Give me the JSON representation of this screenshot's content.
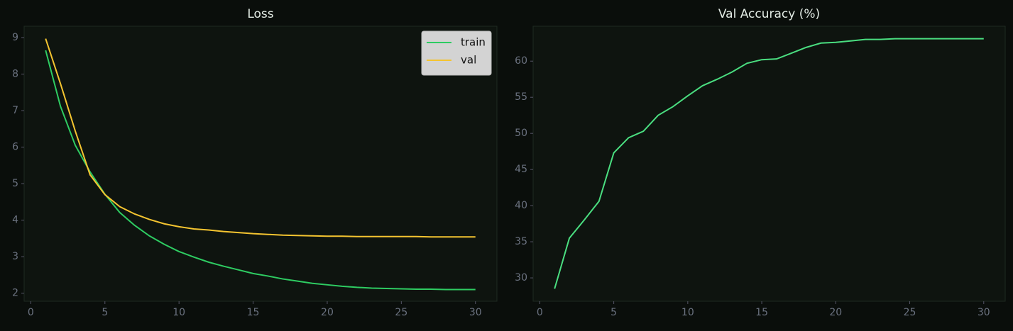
{
  "chart_data": [
    {
      "type": "line",
      "title": "Loss",
      "x": [
        1,
        2,
        3,
        4,
        5,
        6,
        7,
        8,
        9,
        10,
        11,
        12,
        13,
        14,
        15,
        16,
        17,
        18,
        19,
        20,
        21,
        22,
        23,
        24,
        25,
        26,
        27,
        28,
        29,
        30
      ],
      "series": [
        {
          "name": "train",
          "color": "#2ecc62",
          "values": [
            8.65,
            7.12,
            6.05,
            5.32,
            4.71,
            4.21,
            3.86,
            3.57,
            3.34,
            3.14,
            2.99,
            2.85,
            2.74,
            2.64,
            2.54,
            2.47,
            2.39,
            2.33,
            2.27,
            2.23,
            2.19,
            2.16,
            2.14,
            2.13,
            2.12,
            2.11,
            2.11,
            2.1,
            2.1,
            2.1
          ]
        },
        {
          "name": "val",
          "color": "#f4c430",
          "values": [
            8.97,
            7.74,
            6.44,
            5.24,
            4.7,
            4.37,
            4.17,
            4.02,
            3.9,
            3.82,
            3.76,
            3.73,
            3.69,
            3.66,
            3.63,
            3.61,
            3.59,
            3.58,
            3.57,
            3.56,
            3.56,
            3.55,
            3.55,
            3.55,
            3.55,
            3.55,
            3.54,
            3.54,
            3.54,
            3.54
          ]
        }
      ],
      "xlim": [
        -0.45,
        31.45
      ],
      "xticks": [
        0,
        5,
        10,
        15,
        20,
        25,
        30
      ],
      "ylim": [
        1.78,
        9.31
      ],
      "yticks": [
        2,
        3,
        4,
        5,
        6,
        7,
        8,
        9
      ],
      "legend": "upper right"
    },
    {
      "type": "line",
      "title": "Val Accuracy (%)",
      "x": [
        1,
        2,
        3,
        4,
        5,
        6,
        7,
        8,
        9,
        10,
        11,
        12,
        13,
        14,
        15,
        16,
        17,
        18,
        19,
        20,
        21,
        22,
        23,
        24,
        25,
        26,
        27,
        28,
        29,
        30
      ],
      "series": [
        {
          "color": "#4ade80",
          "values": [
            28.5,
            35.5,
            38.0,
            40.6,
            47.3,
            49.4,
            50.3,
            52.5,
            53.7,
            55.2,
            56.6,
            57.5,
            58.5,
            59.7,
            60.2,
            60.3,
            61.1,
            61.9,
            62.5,
            62.6,
            62.8,
            63.0,
            63.0,
            63.1,
            63.1,
            63.1,
            63.1,
            63.1,
            63.1,
            63.1
          ]
        }
      ],
      "xlim": [
        -0.45,
        31.45
      ],
      "xticks": [
        0,
        5,
        10,
        15,
        20,
        25,
        30
      ],
      "ylim": [
        26.77,
        64.83
      ],
      "yticks": [
        30,
        35,
        40,
        45,
        50,
        55,
        60
      ]
    }
  ]
}
